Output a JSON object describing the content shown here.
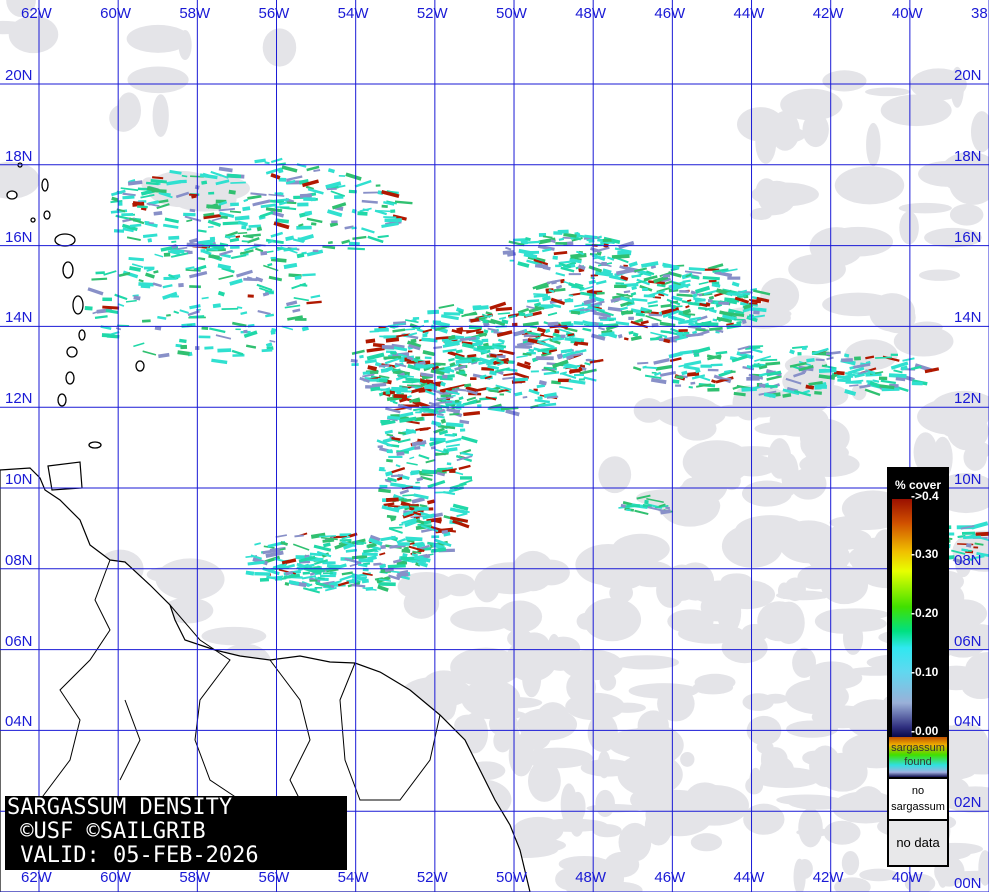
{
  "title": {
    "line1": "SARGASSUM DENSITY",
    "line2": " ©USF ©SAILGRIB",
    "line3": " VALID: 05-FEB-2026"
  },
  "longitude_labels": [
    "62W",
    "60W",
    "58W",
    "56W",
    "54W",
    "52W",
    "50W",
    "48W",
    "46W",
    "44W",
    "42W",
    "40W",
    "38"
  ],
  "latitude_labels": [
    "20N",
    "18N",
    "16N",
    "14N",
    "12N",
    "10N",
    "08N",
    "06N",
    "04N",
    "02N",
    "00N"
  ],
  "legend": {
    "header": "% cover",
    "ticks": [
      "->0.4",
      "-0.30",
      "-0.20",
      "-0.10",
      "-0.00"
    ],
    "found_label_1": "sargassum",
    "found_label_2": "found",
    "no_sargassum_1": "no",
    "no_sargassum_2": "sargassum",
    "no_data": "no data"
  },
  "colors": {
    "grid": "#1a1ad6",
    "no_data": "#e4e4e8",
    "low_density": "#8890c8",
    "medium_density": "#30e0d0",
    "high_density": "#b01800"
  }
}
